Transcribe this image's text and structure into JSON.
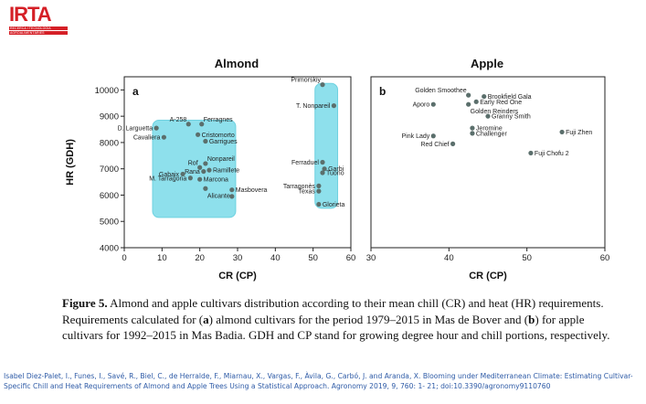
{
  "logo": {
    "name": "IRTA",
    "sub_lines": [
      "RECERCA I TECNOLOGIA",
      "AGROALIMENTÀRIES"
    ]
  },
  "colors": {
    "box": "#8ee0ec",
    "box_edge": "#6fd2e0",
    "point": "#5b6f6c",
    "logo_red": "#d51f26"
  },
  "chart_data": [
    {
      "type": "scatter",
      "title": "Almond",
      "panel_label": "a",
      "xlabel": "CR (CP)",
      "ylabel": "HR (GDH)",
      "xlim": [
        0,
        60
      ],
      "ylim": [
        4000,
        10500
      ],
      "xticks": [
        0,
        10,
        20,
        30,
        40,
        50,
        60
      ],
      "yticks": [
        4000,
        5000,
        6000,
        7000,
        8000,
        9000,
        10000
      ],
      "groups": [
        {
          "name": "group-1",
          "x_range": [
            7.5,
            29.5
          ],
          "y_range": [
            5150,
            8850
          ]
        },
        {
          "name": "group-2",
          "x_range": [
            50.5,
            56.5
          ],
          "y_range": [
            5500,
            10250
          ]
        }
      ],
      "points": [
        {
          "label": "D. Larguetta",
          "x": 8.5,
          "y": 8550,
          "pos": "left"
        },
        {
          "label": "Cavaliera",
          "x": 10.5,
          "y": 8200,
          "pos": "left"
        },
        {
          "label": "A-258",
          "x": 17,
          "y": 8700,
          "pos": "topleft"
        },
        {
          "label": "Ferragnes",
          "x": 20.5,
          "y": 8700,
          "pos": "topright"
        },
        {
          "label": "Cristomorto",
          "x": 19.5,
          "y": 8300,
          "pos": "right"
        },
        {
          "label": "Garrigues",
          "x": 21.5,
          "y": 8050,
          "pos": "right"
        },
        {
          "label": "Nonpareil",
          "x": 21.5,
          "y": 7200,
          "pos": "topright"
        },
        {
          "label": "Rof",
          "x": 20,
          "y": 7050,
          "pos": "topleft"
        },
        {
          "label": "Ramillete",
          "x": 22.5,
          "y": 6950,
          "pos": "right"
        },
        {
          "label": "Rana",
          "x": 21,
          "y": 6900,
          "pos": "left"
        },
        {
          "label": "Gabaix",
          "x": 15.5,
          "y": 6800,
          "pos": "left"
        },
        {
          "label": "M. Tarragona",
          "x": 17.5,
          "y": 6650,
          "pos": "left"
        },
        {
          "label": "Marcona",
          "x": 20,
          "y": 6600,
          "pos": "right"
        },
        {
          "label": "Masbovera",
          "x": 28.5,
          "y": 6200,
          "pos": "right"
        },
        {
          "label": "Alicante",
          "x": 21.5,
          "y": 6250,
          "pos": "bottomright"
        },
        {
          "label": "",
          "x": 28.5,
          "y": 5950,
          "pos": "none"
        },
        {
          "label": "Primorskiy",
          "x": 52.5,
          "y": 10200,
          "pos": "topleft"
        },
        {
          "label": "T. Nonpareil",
          "x": 55.5,
          "y": 9400,
          "pos": "left"
        },
        {
          "label": "Ferraduel",
          "x": 52.5,
          "y": 7250,
          "pos": "left"
        },
        {
          "label": "Garbi",
          "x": 53,
          "y": 7000,
          "pos": "right"
        },
        {
          "label": "Tuono",
          "x": 52.5,
          "y": 6850,
          "pos": "right"
        },
        {
          "label": "Tarragonès",
          "x": 51.5,
          "y": 6350,
          "pos": "left"
        },
        {
          "label": "Texas",
          "x": 51.5,
          "y": 6150,
          "pos": "left"
        },
        {
          "label": "Glorieta",
          "x": 51.5,
          "y": 5650,
          "pos": "right"
        }
      ]
    },
    {
      "type": "scatter",
      "title": "Apple",
      "panel_label": "b",
      "xlabel": "CR (CP)",
      "ylabel": "",
      "xlim": [
        30,
        60
      ],
      "ylim": [
        4000,
        10500
      ],
      "xticks": [
        30,
        40,
        50,
        60
      ],
      "yticks": [],
      "groups": [],
      "points": [
        {
          "label": "Golden Smoothee",
          "x": 42.5,
          "y": 9800,
          "pos": "topleft"
        },
        {
          "label": "Brookfield Gala",
          "x": 44.5,
          "y": 9750,
          "pos": "right"
        },
        {
          "label": "Aporo",
          "x": 38,
          "y": 9450,
          "pos": "left"
        },
        {
          "label": "Early Red One",
          "x": 43.5,
          "y": 9550,
          "pos": "right"
        },
        {
          "label": "Golden Reinders",
          "x": 42.5,
          "y": 9450,
          "pos": "bottomright"
        },
        {
          "label": "Granny Smith",
          "x": 45,
          "y": 9000,
          "pos": "right"
        },
        {
          "label": "Jeromine",
          "x": 43,
          "y": 8550,
          "pos": "right"
        },
        {
          "label": "Challenger",
          "x": 43,
          "y": 8350,
          "pos": "right"
        },
        {
          "label": "Fuji Zhen",
          "x": 54.5,
          "y": 8400,
          "pos": "right"
        },
        {
          "label": "Pink Lady",
          "x": 38,
          "y": 8250,
          "pos": "left"
        },
        {
          "label": "Red Chief",
          "x": 40.5,
          "y": 7950,
          "pos": "left"
        },
        {
          "label": "Fuji Chofu 2",
          "x": 50.5,
          "y": 7600,
          "pos": "right"
        }
      ]
    }
  ],
  "caption": {
    "figure_label": "Figure 5.",
    "text_1": " Almond and apple cultivars distribution according to their mean chill (CR) and heat (HR) requirements. Requirements calculated for (",
    "a_label": "a",
    "text_2": ") almond cultivars for the period 1979–2015 in Mas de Bover and (",
    "b_label": "b",
    "text_3": ") for apple cultivars for 1992–2015 in Mas Badia. GDH and CP stand for growing degree hour and chill portions, respectively."
  },
  "citation": "Isabel Diez-Palet, I., Funes, I., Savé, R., Biel, C., de Herralde, F., Miarnau, X., Vargas, F., Àvila, G., Carbó, J. and Aranda, X. Blooming under Mediterranean Climate: Estimating Cultivar-Specific Chill and Heat Requirements of Almond and Apple Trees Using a Statistical Approach. Agronomy 2019, 9, 760: 1- 21; doi:10.3390/agronomy9110760"
}
